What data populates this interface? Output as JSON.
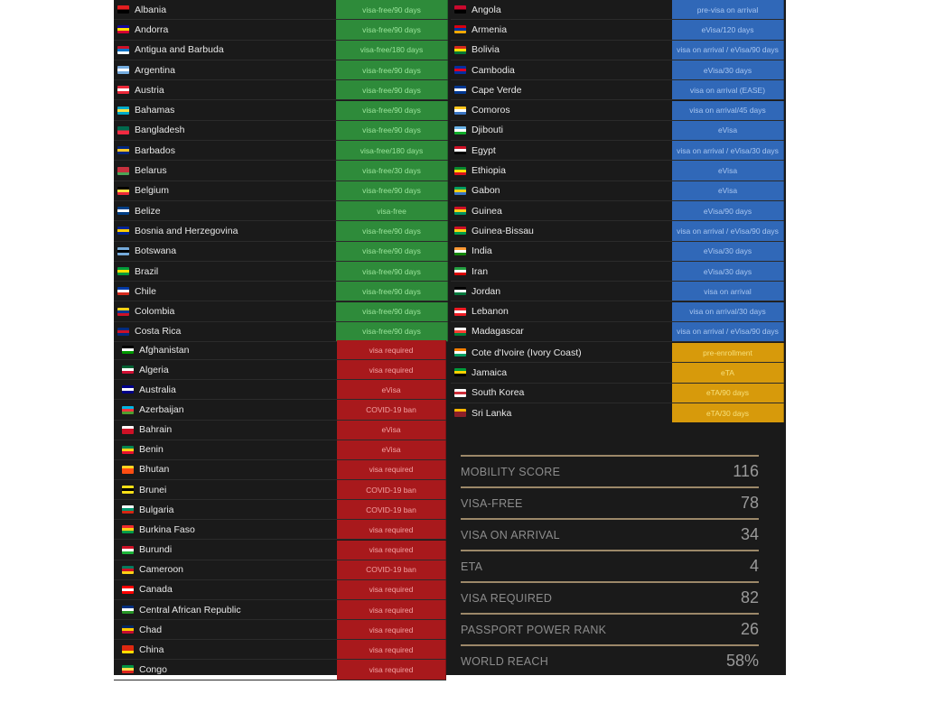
{
  "colors": {
    "visa_free": "#2e8b3a",
    "visa_free_text": "#9be59b",
    "visa_on_arrival": "#3068b8",
    "visa_on_arrival_text": "#a9c7f2",
    "eta": "#d79a0b",
    "eta_text": "#f7e07a",
    "visa_required": "#a8191c",
    "visa_required_text": "#f3a3a3",
    "panel": "#1a1a1a",
    "gold_line": "#9c8869"
  },
  "visa_free_list": [
    {
      "country": "Albania",
      "status": "visa-free/90 days",
      "flag": [
        "#e41e20",
        "#000000"
      ]
    },
    {
      "country": "Andorra",
      "status": "visa-free/90 days",
      "flag": [
        "#10069f",
        "#fedf00",
        "#d50032"
      ]
    },
    {
      "country": "Antigua and Barbuda",
      "status": "visa-free/180 days",
      "flag": [
        "#ce1126",
        "#0072c6",
        "#ffffff"
      ]
    },
    {
      "country": "Argentina",
      "status": "visa-free/90 days",
      "flag": [
        "#74acdf",
        "#ffffff",
        "#74acdf"
      ]
    },
    {
      "country": "Austria",
      "status": "visa-free/90 days",
      "flag": [
        "#ed2939",
        "#ffffff",
        "#ed2939"
      ]
    },
    {
      "country": "Bahamas",
      "status": "visa-free/90 days",
      "flag": [
        "#00abc9",
        "#fae042",
        "#00abc9"
      ]
    },
    {
      "country": "Bangladesh",
      "status": "visa-free/90 days",
      "flag": [
        "#006a4e",
        "#f42a41"
      ]
    },
    {
      "country": "Barbados",
      "status": "visa-free/180 days",
      "flag": [
        "#00267f",
        "#ffc726",
        "#00267f"
      ]
    },
    {
      "country": "Belarus",
      "status": "visa-free/30 days",
      "flag": [
        "#c8313e",
        "#c8313e",
        "#4aa657"
      ]
    },
    {
      "country": "Belgium",
      "status": "visa-free/90 days",
      "flag": [
        "#000000",
        "#fae042",
        "#ed2939"
      ]
    },
    {
      "country": "Belize",
      "status": "visa-free",
      "flag": [
        "#003f87",
        "#ffffff",
        "#003f87"
      ]
    },
    {
      "country": "Bosnia and Herzegovina",
      "status": "visa-free/90 days",
      "flag": [
        "#002395",
        "#fecb00",
        "#002395"
      ]
    },
    {
      "country": "Botswana",
      "status": "visa-free/90 days",
      "flag": [
        "#75aadb",
        "#000000",
        "#75aadb"
      ]
    },
    {
      "country": "Brazil",
      "status": "visa-free/90 days",
      "flag": [
        "#009c3b",
        "#ffdf00",
        "#009c3b"
      ]
    },
    {
      "country": "Chile",
      "status": "visa-free/90 days",
      "flag": [
        "#0039a6",
        "#ffffff",
        "#d52b1e"
      ]
    },
    {
      "country": "Colombia",
      "status": "visa-free/90 days",
      "flag": [
        "#fcd116",
        "#003893",
        "#ce1126"
      ]
    },
    {
      "country": "Costa Rica",
      "status": "visa-free/90 days",
      "flag": [
        "#002b7f",
        "#ce1126",
        "#002b7f"
      ]
    }
  ],
  "visa_on_arrival_list": [
    {
      "country": "Angola",
      "status": "pre-visa on arrival",
      "flag": [
        "#cc092f",
        "#000000"
      ]
    },
    {
      "country": "Armenia",
      "status": "eVisa/120 days",
      "flag": [
        "#d90012",
        "#0033a0",
        "#f2a800"
      ]
    },
    {
      "country": "Bolivia",
      "status": "visa on arrival / eVisa/90 days",
      "flag": [
        "#d52b1e",
        "#f9e300",
        "#007934"
      ]
    },
    {
      "country": "Cambodia",
      "status": "eVisa/30 days",
      "flag": [
        "#032ea1",
        "#e00025",
        "#032ea1"
      ]
    },
    {
      "country": "Cape Verde",
      "status": "visa on arrival (EASE)",
      "flag": [
        "#003893",
        "#ffffff",
        "#003893"
      ]
    },
    {
      "country": "Comoros",
      "status": "visa on arrival/45 days",
      "flag": [
        "#ffc61e",
        "#ffffff",
        "#3a75c4"
      ]
    },
    {
      "country": "Djibouti",
      "status": "eVisa",
      "flag": [
        "#6ab2e7",
        "#ffffff",
        "#12ad2b"
      ]
    },
    {
      "country": "Egypt",
      "status": "visa on arrival / eVisa/30 days",
      "flag": [
        "#ce1126",
        "#ffffff",
        "#000000"
      ]
    },
    {
      "country": "Ethiopia",
      "status": "eVisa",
      "flag": [
        "#078930",
        "#fcdd09",
        "#da121a"
      ]
    },
    {
      "country": "Gabon",
      "status": "eVisa",
      "flag": [
        "#009e60",
        "#fcd116",
        "#3a75c4"
      ]
    },
    {
      "country": "Guinea",
      "status": "eVisa/90 days",
      "flag": [
        "#ce1126",
        "#fcd116",
        "#009460"
      ]
    },
    {
      "country": "Guinea-Bissau",
      "status": "visa on arrival / eVisa/90 days",
      "flag": [
        "#ce1126",
        "#fcd116",
        "#009e49"
      ]
    },
    {
      "country": "India",
      "status": "eVisa/30 days",
      "flag": [
        "#ff9933",
        "#ffffff",
        "#138808"
      ]
    },
    {
      "country": "Iran",
      "status": "eVisa/30 days",
      "flag": [
        "#239f40",
        "#ffffff",
        "#da0000"
      ]
    },
    {
      "country": "Jordan",
      "status": "visa on arrival",
      "flag": [
        "#000000",
        "#ffffff",
        "#007a3d"
      ]
    },
    {
      "country": "Lebanon",
      "status": "visa on arrival/30 days",
      "flag": [
        "#ed1c24",
        "#ffffff",
        "#ed1c24"
      ]
    },
    {
      "country": "Madagascar",
      "status": "visa on arrival / eVisa/90 days",
      "flag": [
        "#ffffff",
        "#fc3d32",
        "#007e3a"
      ]
    }
  ],
  "eta_list": [
    {
      "country": "Cote d'Ivoire (Ivory Coast)",
      "status": "pre-enrollment",
      "flag": [
        "#f77f00",
        "#ffffff",
        "#009e60"
      ]
    },
    {
      "country": "Jamaica",
      "status": "eTA",
      "flag": [
        "#009b3a",
        "#fed100",
        "#000000"
      ]
    },
    {
      "country": "South Korea",
      "status": "eTA/90 days",
      "flag": [
        "#ffffff",
        "#cd2e3a",
        "#ffffff"
      ]
    },
    {
      "country": "Sri Lanka",
      "status": "eTA/30 days",
      "flag": [
        "#ffb700",
        "#8d2029",
        "#8d2029"
      ]
    }
  ],
  "visa_required_list": [
    {
      "country": "Afghanistan",
      "status": "visa required",
      "flag": [
        "#000000",
        "#ffffff",
        "#009900"
      ]
    },
    {
      "country": "Algeria",
      "status": "visa required",
      "flag": [
        "#006233",
        "#ffffff",
        "#d21034"
      ]
    },
    {
      "country": "Australia",
      "status": "eVisa",
      "flag": [
        "#00008b",
        "#ffffff",
        "#00008b"
      ]
    },
    {
      "country": "Azerbaijan",
      "status": "COVID-19 ban",
      "flag": [
        "#00b5e2",
        "#ef3340",
        "#509e2f"
      ]
    },
    {
      "country": "Bahrain",
      "status": "eVisa",
      "flag": [
        "#ffffff",
        "#ce1126",
        "#ce1126"
      ]
    },
    {
      "country": "Benin",
      "status": "eVisa",
      "flag": [
        "#008751",
        "#fcd116",
        "#e8112d"
      ]
    },
    {
      "country": "Bhutan",
      "status": "visa required",
      "flag": [
        "#ffd520",
        "#ff4e12",
        "#ff4e12"
      ]
    },
    {
      "country": "Brunei",
      "status": "COVID-19 ban",
      "flag": [
        "#f7e017",
        "#000000",
        "#f7e017"
      ]
    },
    {
      "country": "Bulgaria",
      "status": "COVID-19 ban",
      "flag": [
        "#ffffff",
        "#00966e",
        "#d62612"
      ]
    },
    {
      "country": "Burkina Faso",
      "status": "visa required",
      "flag": [
        "#ef2b2d",
        "#fcd116",
        "#009e49"
      ]
    },
    {
      "country": "Burundi",
      "status": "visa required",
      "flag": [
        "#ce1126",
        "#ffffff",
        "#1eb53a"
      ]
    },
    {
      "country": "Cameroon",
      "status": "COVID-19 ban",
      "flag": [
        "#007a5e",
        "#ce1126",
        "#fcd116"
      ]
    },
    {
      "country": "Canada",
      "status": "visa required",
      "flag": [
        "#ff0000",
        "#ffffff",
        "#ff0000"
      ]
    },
    {
      "country": "Central African Republic",
      "status": "visa required",
      "flag": [
        "#003082",
        "#ffffff",
        "#289728"
      ]
    },
    {
      "country": "Chad",
      "status": "visa required",
      "flag": [
        "#002664",
        "#fecb00",
        "#c60c30"
      ]
    },
    {
      "country": "China",
      "status": "visa required",
      "flag": [
        "#de2910",
        "#de2910",
        "#ffde00"
      ]
    },
    {
      "country": "Congo",
      "status": "visa required",
      "flag": [
        "#009543",
        "#fbde4a",
        "#dc241f"
      ]
    }
  ],
  "stats": [
    {
      "label": "MOBILITY SCORE",
      "value": "116"
    },
    {
      "label": "VISA-FREE",
      "value": "78"
    },
    {
      "label": "VISA ON ARRIVAL",
      "value": "34"
    },
    {
      "label": "ETA",
      "value": "4"
    },
    {
      "label": "VISA REQUIRED",
      "value": "82"
    },
    {
      "label": "PASSPORT POWER RANK",
      "value": "26"
    },
    {
      "label": "WORLD REACH",
      "value": "58%"
    }
  ]
}
